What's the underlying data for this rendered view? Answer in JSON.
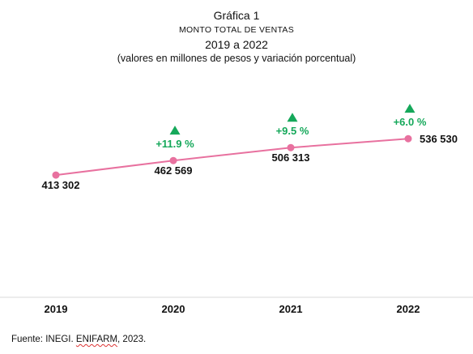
{
  "chart_data": {
    "type": "line",
    "title": "Gráfica 1",
    "subtitle_lines": [
      "MONTO TOTAL DE VENTAS",
      "2019 a 2022",
      "(valores en millones de pesos y variación porcentual)"
    ],
    "categories": [
      "2019",
      "2020",
      "2021",
      "2022"
    ],
    "values": [
      413302,
      462569,
      506313,
      536530
    ],
    "value_labels": [
      "413 302",
      "462 569",
      "506 313",
      "536 530"
    ],
    "change_labels": [
      "",
      "+11.9 %",
      "+9.5 %",
      "+6.0 %"
    ],
    "ylim": [
      0,
      900000
    ],
    "grid": false,
    "colors": {
      "line": "#e8719f",
      "change": "#15a85a"
    }
  },
  "source": {
    "prefix": "Fuente: INEGI. ",
    "underlined": "ENIFARM",
    "suffix": ", 2023."
  }
}
